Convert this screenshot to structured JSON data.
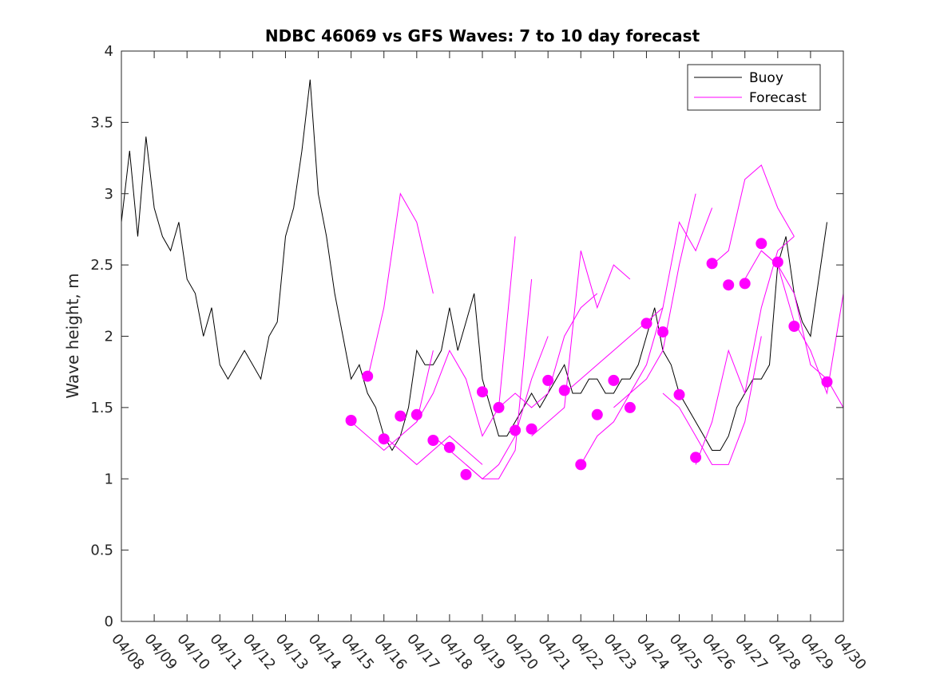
{
  "chart_data": {
    "type": "line",
    "title": "NDBC 46069 vs GFS Waves: 7 to 10 day forecast",
    "xlabel": "",
    "ylabel": "Wave height, m",
    "xlim": [
      "04/08",
      "04/30"
    ],
    "ylim": [
      0,
      4
    ],
    "x_tick_labels": [
      "04/08",
      "04/09",
      "04/10",
      "04/11",
      "04/12",
      "04/13",
      "04/14",
      "04/15",
      "04/16",
      "04/17",
      "04/18",
      "04/19",
      "04/20",
      "04/21",
      "04/22",
      "04/23",
      "04/24",
      "04/25",
      "04/26",
      "04/27",
      "04/28",
      "04/29",
      "04/30"
    ],
    "y_ticks": [
      0,
      0.5,
      1,
      1.5,
      2,
      2.5,
      3,
      3.5,
      4
    ],
    "y_tick_labels": [
      "0",
      "0.5",
      "1",
      "1.5",
      "2",
      "2.5",
      "3",
      "3.5",
      "4"
    ],
    "legend": {
      "position": "top-right",
      "entries": [
        "Buoy",
        "Forecast"
      ]
    },
    "colors": {
      "buoy": "#000000",
      "forecast": "#ff00ff"
    },
    "series": [
      {
        "name": "Buoy",
        "x": [
          "04/08 00:00",
          "04/08 06:00",
          "04/08 12:00",
          "04/08 18:00",
          "04/09 00:00",
          "04/09 06:00",
          "04/09 12:00",
          "04/09 18:00",
          "04/10 00:00",
          "04/10 06:00",
          "04/10 12:00",
          "04/10 18:00",
          "04/11 00:00",
          "04/11 06:00",
          "04/11 12:00",
          "04/11 18:00",
          "04/12 00:00",
          "04/12 06:00",
          "04/12 12:00",
          "04/12 18:00",
          "04/13 00:00",
          "04/13 06:00",
          "04/13 12:00",
          "04/13 18:00",
          "04/14 00:00",
          "04/14 06:00",
          "04/14 12:00",
          "04/14 18:00",
          "04/15 00:00",
          "04/15 06:00",
          "04/15 12:00",
          "04/15 18:00",
          "04/16 00:00",
          "04/16 06:00",
          "04/16 12:00",
          "04/16 18:00",
          "04/17 00:00",
          "04/17 06:00",
          "04/17 12:00",
          "04/17 18:00",
          "04/18 00:00",
          "04/18 06:00",
          "04/18 12:00",
          "04/18 18:00",
          "04/19 00:00",
          "04/19 06:00",
          "04/19 12:00",
          "04/19 18:00",
          "04/20 00:00",
          "04/20 06:00",
          "04/20 12:00",
          "04/20 18:00",
          "04/21 00:00",
          "04/21 06:00",
          "04/21 12:00",
          "04/21 18:00",
          "04/22 00:00",
          "04/22 06:00",
          "04/22 12:00",
          "04/22 18:00",
          "04/23 00:00",
          "04/23 06:00",
          "04/23 12:00",
          "04/23 18:00",
          "04/24 00:00",
          "04/24 06:00",
          "04/24 12:00",
          "04/24 18:00",
          "04/25 00:00",
          "04/25 06:00",
          "04/25 12:00",
          "04/25 18:00",
          "04/26 00:00",
          "04/26 06:00",
          "04/26 12:00",
          "04/26 18:00",
          "04/27 00:00",
          "04/27 06:00",
          "04/27 12:00",
          "04/27 18:00",
          "04/28 00:00",
          "04/28 06:00",
          "04/28 12:00",
          "04/28 18:00",
          "04/29 00:00",
          "04/29 06:00",
          "04/29 12:00"
        ],
        "y": [
          2.8,
          3.3,
          2.7,
          3.4,
          2.9,
          2.7,
          2.6,
          2.8,
          2.4,
          2.3,
          2.0,
          2.2,
          1.8,
          1.7,
          1.8,
          1.9,
          1.8,
          1.7,
          2.0,
          2.1,
          2.7,
          2.9,
          3.3,
          3.8,
          3.0,
          2.7,
          2.3,
          2.0,
          1.7,
          1.8,
          1.6,
          1.5,
          1.3,
          1.2,
          1.3,
          1.5,
          1.9,
          1.8,
          1.8,
          1.9,
          2.2,
          1.9,
          2.1,
          2.3,
          1.7,
          1.5,
          1.3,
          1.3,
          1.4,
          1.5,
          1.6,
          1.5,
          1.6,
          1.7,
          1.8,
          1.6,
          1.6,
          1.7,
          1.7,
          1.6,
          1.6,
          1.7,
          1.7,
          1.8,
          2.0,
          2.2,
          1.9,
          1.8,
          1.6,
          1.5,
          1.4,
          1.3,
          1.2,
          1.2,
          1.3,
          1.5,
          1.6,
          1.7,
          1.7,
          1.8,
          2.5,
          2.7,
          2.3,
          2.1,
          2.0,
          2.4,
          2.8
        ]
      },
      {
        "name": "Forecast",
        "x": [
          "04/15 12:00",
          "04/16 00:00",
          "04/16 12:00",
          "04/17 00:00",
          "04/17 12:00"
        ],
        "y": [
          1.7,
          2.2,
          3.0,
          2.8,
          2.3
        ]
      },
      {
        "name": "Forecast",
        "x": [
          "04/15 00:00",
          "04/15 12:00",
          "04/16 00:00",
          "04/16 12:00",
          "04/17 00:00",
          "04/17 12:00"
        ],
        "y": [
          1.4,
          1.3,
          1.2,
          1.3,
          1.4,
          1.9
        ]
      },
      {
        "name": "Forecast",
        "x": [
          "04/16 00:00",
          "04/16 12:00",
          "04/17 00:00",
          "04/17 12:00",
          "04/18 00:00",
          "04/18 12:00",
          "04/19 00:00"
        ],
        "y": [
          1.3,
          1.2,
          1.1,
          1.2,
          1.3,
          1.2,
          1.1
        ]
      },
      {
        "name": "Forecast",
        "x": [
          "04/17 00:00",
          "04/17 12:00",
          "04/18 00:00",
          "04/18 12:00",
          "04/19 00:00",
          "04/19 12:00",
          "04/20 00:00"
        ],
        "y": [
          1.4,
          1.6,
          1.9,
          1.7,
          1.3,
          1.5,
          2.7
        ]
      },
      {
        "name": "Forecast",
        "x": [
          "04/17 12:00",
          "04/18 00:00",
          "04/18 12:00",
          "04/19 00:00",
          "04/19 12:00",
          "04/20 00:00",
          "04/20 12:00"
        ],
        "y": [
          1.3,
          1.2,
          1.1,
          1.0,
          1.0,
          1.2,
          2.4
        ]
      },
      {
        "name": "Forecast",
        "x": [
          "04/18 12:00",
          "04/19 00:00",
          "04/19 12:00",
          "04/20 00:00",
          "04/20 12:00",
          "04/21 00:00"
        ],
        "y": [
          1.1,
          1.0,
          1.1,
          1.3,
          1.7,
          2.0
        ]
      },
      {
        "name": "Forecast",
        "x": [
          "04/19 12:00",
          "04/20 00:00",
          "04/20 12:00",
          "04/21 00:00",
          "04/21 12:00",
          "04/22 00:00",
          "04/22 12:00"
        ],
        "y": [
          1.5,
          1.6,
          1.5,
          1.6,
          2.0,
          2.2,
          2.3
        ]
      },
      {
        "name": "Forecast",
        "x": [
          "04/20 12:00",
          "04/21 00:00",
          "04/21 12:00",
          "04/22 00:00",
          "04/22 12:00",
          "04/23 00:00",
          "04/23 12:00"
        ],
        "y": [
          1.3,
          1.4,
          1.5,
          2.6,
          2.2,
          2.5,
          2.4
        ]
      },
      {
        "name": "Forecast",
        "x": [
          "04/21 12:00",
          "04/22 00:00",
          "04/22 12:00",
          "04/23 00:00",
          "04/23 12:00",
          "04/24 00:00",
          "04/24 12:00"
        ],
        "y": [
          1.6,
          1.7,
          1.8,
          1.9,
          2.0,
          2.1,
          2.2
        ]
      },
      {
        "name": "Forecast",
        "x": [
          "04/22 00:00",
          "04/22 12:00",
          "04/23 00:00",
          "04/23 12:00",
          "04/24 00:00",
          "04/24 12:00",
          "04/25 00:00",
          "04/25 12:00"
        ],
        "y": [
          1.1,
          1.3,
          1.4,
          1.6,
          1.7,
          1.9,
          2.5,
          3.0
        ]
      },
      {
        "name": "Forecast",
        "x": [
          "04/23 00:00",
          "04/23 12:00",
          "04/24 00:00",
          "04/24 12:00",
          "04/25 00:00",
          "04/25 12:00",
          "04/26 00:00"
        ],
        "y": [
          1.5,
          1.6,
          1.8,
          2.2,
          2.8,
          2.6,
          2.9
        ]
      },
      {
        "name": "Forecast",
        "x": [
          "04/24 12:00",
          "04/25 00:00",
          "04/25 12:00",
          "04/26 00:00",
          "04/26 12:00",
          "04/27 00:00",
          "04/27 12:00"
        ],
        "y": [
          1.6,
          1.5,
          1.3,
          1.1,
          1.1,
          1.4,
          2.0
        ]
      },
      {
        "name": "Forecast",
        "x": [
          "04/25 12:00",
          "04/26 00:00",
          "04/26 12:00",
          "04/27 00:00",
          "04/27 12:00",
          "04/28 00:00",
          "04/28 12:00"
        ],
        "y": [
          1.1,
          1.4,
          1.9,
          1.6,
          2.2,
          2.6,
          2.7
        ]
      },
      {
        "name": "Forecast",
        "x": [
          "04/26 00:00",
          "04/26 12:00",
          "04/27 00:00",
          "04/27 12:00",
          "04/28 00:00",
          "04/28 12:00"
        ],
        "y": [
          2.5,
          2.6,
          3.1,
          3.2,
          2.9,
          2.7
        ]
      },
      {
        "name": "Forecast",
        "x": [
          "04/27 00:00",
          "04/27 12:00",
          "04/28 00:00",
          "04/28 12:00",
          "04/29 00:00",
          "04/29 12:00",
          "04/30 00:00"
        ],
        "y": [
          2.4,
          2.6,
          2.5,
          2.3,
          1.8,
          1.7,
          1.5
        ]
      },
      {
        "name": "Forecast",
        "x": [
          "04/27 12:00",
          "04/28 00:00",
          "04/28 12:00",
          "04/29 00:00",
          "04/29 12:00",
          "04/30 00:00"
        ],
        "y": [
          2.6,
          2.5,
          2.1,
          1.9,
          1.6,
          2.3
        ]
      },
      {
        "name": "Forecast",
        "x": [
          "04/15 00:00",
          "04/15 12:00",
          "04/16 00:00",
          "04/16 12:00",
          "04/17 00:00",
          "04/17 12:00",
          "04/18 00:00",
          "04/18 12:00",
          "04/19 00:00",
          "04/19 12:00",
          "04/20 00:00",
          "04/20 12:00",
          "04/21 00:00",
          "04/21 12:00",
          "04/22 00:00",
          "04/22 12:00",
          "04/23 00:00",
          "04/23 12:00",
          "04/24 00:00",
          "04/24 12:00",
          "04/25 00:00",
          "04/25 12:00",
          "04/26 00:00",
          "04/26 12:00",
          "04/27 00:00",
          "04/27 12:00",
          "04/28 00:00",
          "04/28 12:00",
          "04/29 12:00"
        ],
        "y": [
          1.41,
          1.72,
          1.28,
          1.44,
          1.45,
          1.27,
          1.22,
          1.03,
          1.61,
          1.5,
          1.34,
          1.35,
          1.69,
          1.62,
          1.1,
          1.45,
          1.69,
          1.5,
          2.09,
          2.03,
          1.59,
          1.15,
          2.51,
          2.36,
          2.37,
          2.65,
          2.52,
          2.07,
          1.68
        ],
        "marker": "filled-circle"
      }
    ]
  }
}
